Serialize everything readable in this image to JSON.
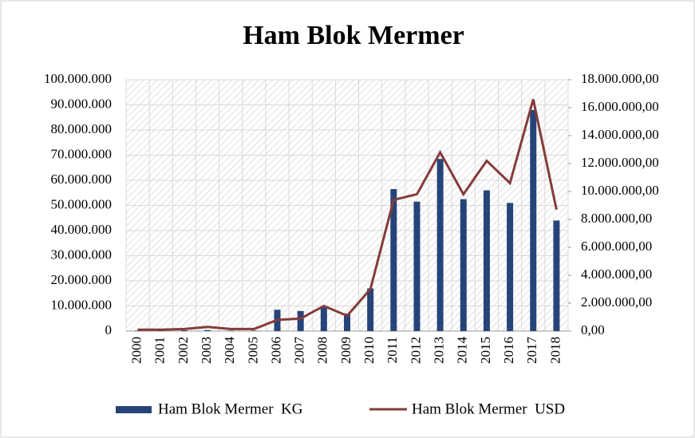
{
  "chart_data": {
    "type": "bar-line",
    "title": "Ham Blok Mermer",
    "categories": [
      "2000",
      "2001",
      "2002",
      "2003",
      "2004",
      "2005",
      "2006",
      "2007",
      "2008",
      "2009",
      "2010",
      "2011",
      "2012",
      "2013",
      "2014",
      "2015",
      "2016",
      "2017",
      "2018"
    ],
    "series": [
      {
        "name": "Ham Blok Mermer  KG",
        "type": "bar",
        "color": "#264478",
        "values": [
          200000,
          200000,
          300000,
          400000,
          200000,
          200000,
          8500000,
          8000000,
          9500000,
          7000000,
          17000000,
          56500000,
          51500000,
          68500000,
          52500000,
          56000000,
          51000000,
          88000000,
          44000000
        ]
      },
      {
        "name": "Ham Blok Mermer  USD",
        "type": "line",
        "axis": "y2",
        "color": "#843c39",
        "values": [
          100000,
          100000,
          150000,
          300000,
          150000,
          150000,
          800000,
          900000,
          1800000,
          1100000,
          3000000,
          9400000,
          9800000,
          12800000,
          9800000,
          12200000,
          10600000,
          16600000,
          8700000
        ]
      }
    ],
    "ylim": [
      0,
      100000000
    ],
    "yticks": [
      {
        "value": 0,
        "label": "0"
      },
      {
        "value": 10000000,
        "label": "10.000.000"
      },
      {
        "value": 20000000,
        "label": "20.000.000"
      },
      {
        "value": 30000000,
        "label": "30.000.000"
      },
      {
        "value": 40000000,
        "label": "40.000.000"
      },
      {
        "value": 50000000,
        "label": "50.000.000"
      },
      {
        "value": 60000000,
        "label": "60.000.000"
      },
      {
        "value": 70000000,
        "label": "70.000.000"
      },
      {
        "value": 80000000,
        "label": "80.000.000"
      },
      {
        "value": 90000000,
        "label": "90.000.000"
      },
      {
        "value": 100000000,
        "label": "100.000.000"
      }
    ],
    "y2lim": [
      0,
      18000000
    ],
    "y2ticks": [
      {
        "value": 0,
        "label": "0,00"
      },
      {
        "value": 2000000,
        "label": "2.000.000,00"
      },
      {
        "value": 4000000,
        "label": "4.000.000,00"
      },
      {
        "value": 6000000,
        "label": "6.000.000,00"
      },
      {
        "value": 8000000,
        "label": "8.000.000,00"
      },
      {
        "value": 10000000,
        "label": "10.000.000,00"
      },
      {
        "value": 12000000,
        "label": "12.000.000,00"
      },
      {
        "value": 14000000,
        "label": "14.000.000,00"
      },
      {
        "value": 16000000,
        "label": "16.000.000,00"
      },
      {
        "value": 18000000,
        "label": "18.000.000,00"
      }
    ],
    "grid": true,
    "legend": "bottom"
  }
}
